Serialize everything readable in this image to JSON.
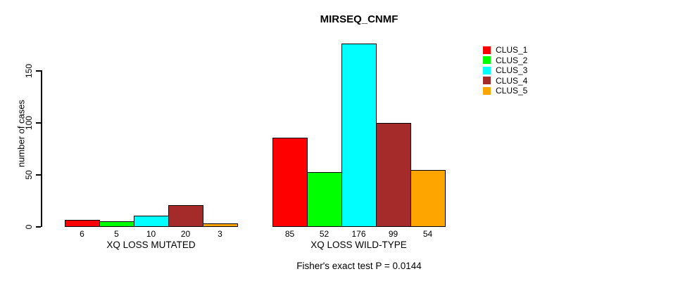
{
  "chart_data": {
    "type": "bar",
    "title": "MIRSEQ_CNMF",
    "ylabel": "number of cases",
    "xlabel": "",
    "footnote": "Fisher's exact test P = 0.0144",
    "yticks": [
      0,
      50,
      100,
      150
    ],
    "ylim": [
      0,
      185
    ],
    "grid": false,
    "legend_position": "right",
    "legend": [
      {
        "name": "CLUS_1",
        "color": "#FF0000"
      },
      {
        "name": "CLUS_2",
        "color": "#00FF00"
      },
      {
        "name": "CLUS_3",
        "color": "#00FFFF"
      },
      {
        "name": "CLUS_4",
        "color": "#A52A2A"
      },
      {
        "name": "CLUS_5",
        "color": "#FFA500"
      }
    ],
    "categories": [
      "XQ LOSS MUTATED",
      "XQ LOSS WILD-TYPE"
    ],
    "groups": [
      {
        "label": "XQ LOSS MUTATED",
        "values": [
          6,
          5,
          10,
          20,
          3
        ]
      },
      {
        "label": "XQ LOSS WILD-TYPE",
        "values": [
          85,
          52,
          176,
          99,
          54
        ]
      }
    ]
  }
}
